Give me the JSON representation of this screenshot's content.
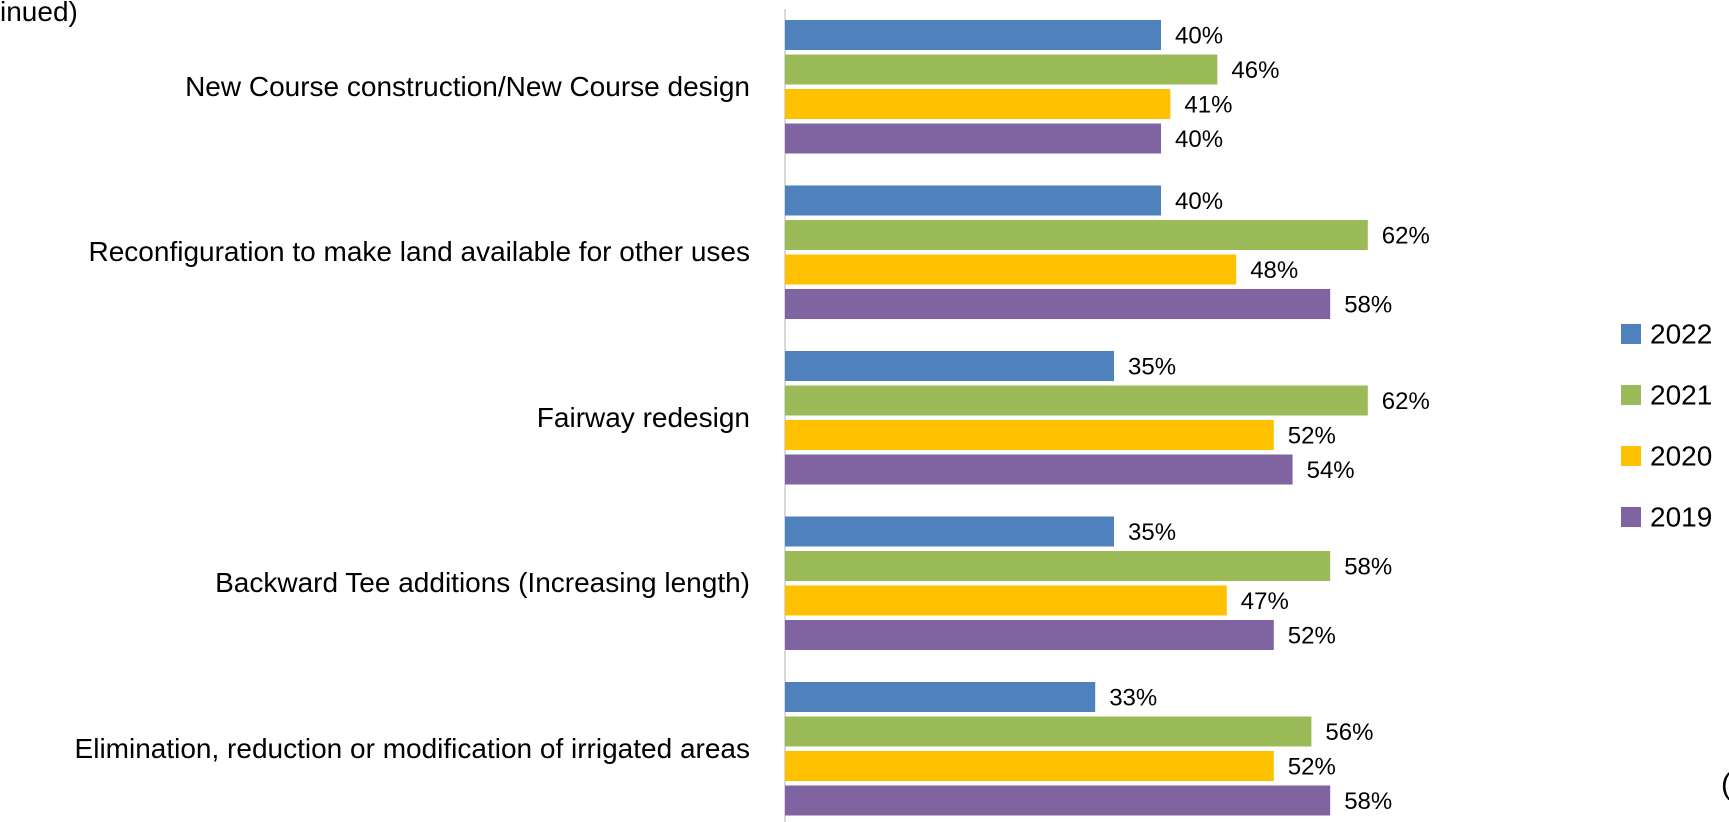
{
  "chart_data": {
    "type": "bar",
    "orientation": "horizontal",
    "title": "inued)",
    "annotation": "(",
    "categories": [
      "New Course construction/New Course design",
      "Reconfiguration to make land available for other uses",
      "Fairway redesign",
      "Backward Tee additions (Increasing length)",
      "Elimination, reduction or modification of irrigated areas"
    ],
    "series": [
      {
        "name": "2022",
        "color": "#4f81bd",
        "values": [
          40,
          40,
          35,
          35,
          33
        ],
        "value_labels": [
          "40%",
          "40%",
          "35%",
          "35%",
          "33%"
        ]
      },
      {
        "name": "2021",
        "color": "#9bbb59",
        "values": [
          46,
          62,
          62,
          58,
          56
        ],
        "value_labels": [
          "46%",
          "62%",
          "62%",
          "58%",
          "56%"
        ]
      },
      {
        "name": "2020",
        "color": "#ffc000",
        "values": [
          41,
          48,
          52,
          47,
          52
        ],
        "value_labels": [
          "41%",
          "48%",
          "52%",
          "47%",
          "52%"
        ]
      },
      {
        "name": "2019",
        "color": "#8064a2",
        "values": [
          40,
          58,
          54,
          52,
          58
        ],
        "value_labels": [
          "40%",
          "58%",
          "54%",
          "52%",
          "58%"
        ]
      }
    ],
    "xlim": [
      0,
      100
    ],
    "legend": "right"
  }
}
